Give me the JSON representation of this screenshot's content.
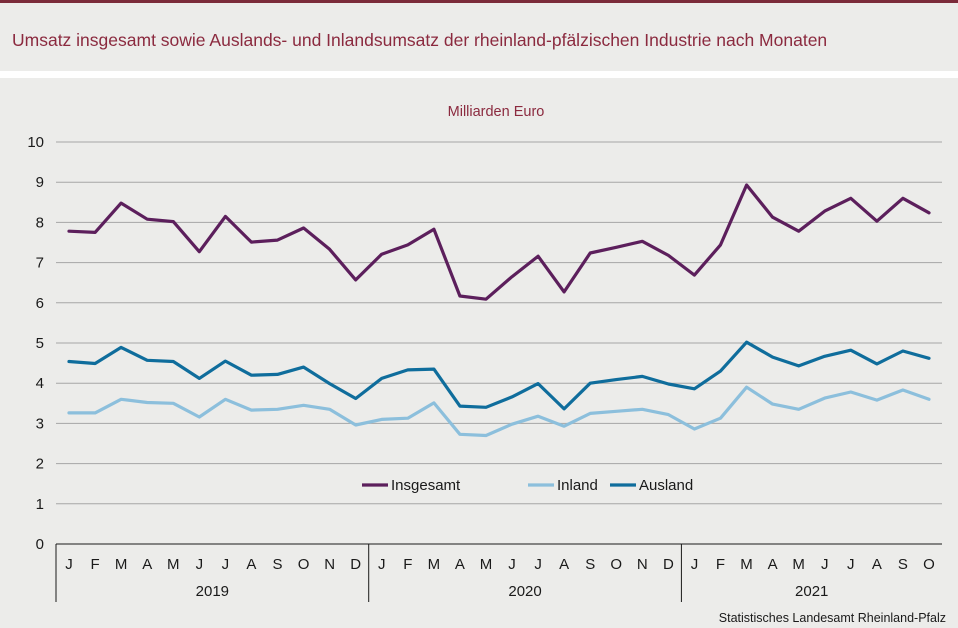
{
  "header": {
    "title": "Umsatz insgesamt sowie Auslands- und Inlandsumsatz der rheinland-pfälzischen Industrie nach Monaten"
  },
  "source": "Statistisches Landesamt Rheinland-Pfalz",
  "colors": {
    "accent": "#8b2a3f",
    "insgesamt": "#5c1f5c",
    "inland": "#8cbfdc",
    "ausland": "#0f6d9c"
  },
  "chart_data": {
    "type": "line",
    "title": "Umsatz insgesamt sowie Auslands- und Inlandsumsatz der rheinland-pfälzischen Industrie nach Monaten",
    "ylabel": "Milliarden Euro",
    "xlabel": "",
    "ylim": [
      0,
      10
    ],
    "yticks": [
      "0",
      "1",
      "2",
      "3",
      "4",
      "5",
      "6",
      "7",
      "8",
      "9",
      "10"
    ],
    "grid": true,
    "legend_position": "center",
    "categories": [
      "J",
      "F",
      "M",
      "A",
      "M",
      "J",
      "J",
      "A",
      "S",
      "O",
      "N",
      "D",
      "J",
      "F",
      "M",
      "A",
      "M",
      "J",
      "J",
      "A",
      "S",
      "O",
      "N",
      "D",
      "J",
      "F",
      "M",
      "A",
      "M",
      "J",
      "J",
      "A",
      "S",
      "O"
    ],
    "years": [
      {
        "label": "2019",
        "months": 12
      },
      {
        "label": "2020",
        "months": 12
      },
      {
        "label": "2021",
        "months": 10
      }
    ],
    "series": [
      {
        "name": "Insgesamt",
        "color": "#5c1f5c",
        "values": [
          7.78,
          7.75,
          8.48,
          8.08,
          8.02,
          7.27,
          8.15,
          7.51,
          7.56,
          7.86,
          7.33,
          6.57,
          7.21,
          7.44,
          7.83,
          6.17,
          6.09,
          6.65,
          7.16,
          6.27,
          7.24,
          7.38,
          7.53,
          7.18,
          6.69,
          7.44,
          8.93,
          8.13,
          7.78,
          8.28,
          8.6,
          8.03,
          8.6,
          8.24
        ]
      },
      {
        "name": "Inland",
        "color": "#8cbfdc",
        "values": [
          3.26,
          3.26,
          3.6,
          3.52,
          3.5,
          3.16,
          3.6,
          3.33,
          3.35,
          3.45,
          3.35,
          2.96,
          3.1,
          3.13,
          3.51,
          2.73,
          2.7,
          2.98,
          3.18,
          2.93,
          3.25,
          3.3,
          3.35,
          3.22,
          2.86,
          3.13,
          3.9,
          3.48,
          3.35,
          3.63,
          3.78,
          3.58,
          3.83,
          3.6
        ]
      },
      {
        "name": "Ausland",
        "color": "#0f6d9c",
        "values": [
          4.54,
          4.49,
          4.89,
          4.57,
          4.54,
          4.12,
          4.55,
          4.2,
          4.22,
          4.4,
          3.99,
          3.62,
          4.12,
          4.33,
          4.35,
          3.43,
          3.4,
          3.66,
          3.99,
          3.36,
          4.0,
          4.09,
          4.17,
          3.98,
          3.86,
          4.3,
          5.02,
          4.65,
          4.43,
          4.67,
          4.82,
          4.48,
          4.8,
          4.62
        ]
      }
    ]
  }
}
